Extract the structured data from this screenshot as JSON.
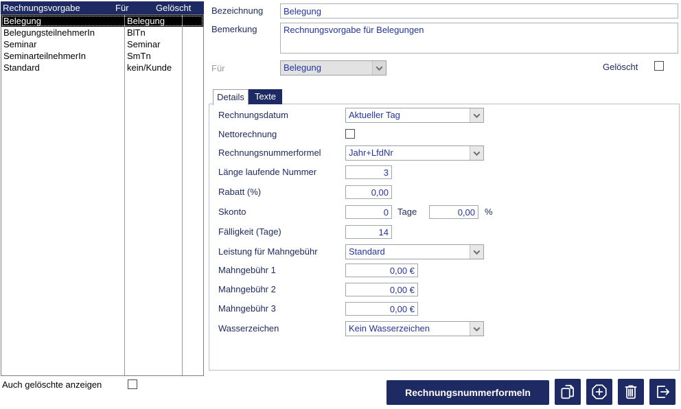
{
  "colors": {
    "accent_navy": "#1e2a63",
    "field_text": "#2333a0",
    "selected_row_bg": "#000000"
  },
  "list": {
    "headers": {
      "col1": "Rechnungsvorgabe",
      "col2": "Für",
      "col3": "Gelöscht"
    },
    "rows": [
      {
        "name": "Belegung",
        "fuer": "Belegung",
        "selected": true
      },
      {
        "name": "BelegungsteilnehmerIn",
        "fuer": "BlTn",
        "selected": false
      },
      {
        "name": "Seminar",
        "fuer": "Seminar",
        "selected": false
      },
      {
        "name": "SeminarteilnehmerIn",
        "fuer": "SmTn",
        "selected": false
      },
      {
        "name": "Standard",
        "fuer": "kein/Kunde",
        "selected": false
      }
    ]
  },
  "detail": {
    "bezeichnung_label": "Bezeichnung",
    "bezeichnung_value": "Belegung",
    "bemerkung_label": "Bemerkung",
    "bemerkung_value": "Rechnungsvorgabe für Belegungen",
    "fuer_label": "Für",
    "fuer_value": "Belegung",
    "geloescht_label": "Gelöscht"
  },
  "tabs": {
    "details": "Details",
    "texte": "Texte"
  },
  "form": {
    "rechnungsdatum": {
      "label": "Rechnungsdatum",
      "value": "Aktueller Tag"
    },
    "nettorechnung": {
      "label": "Nettorechnung"
    },
    "rechnungsnummerformel": {
      "label": "Rechnungsnummerformel",
      "value": "Jahr+LfdNr"
    },
    "laenge_laufende_nummer": {
      "label": "Länge laufende Nummer",
      "value": "3"
    },
    "rabatt": {
      "label": "Rabatt (%)",
      "value": "0,00"
    },
    "skonto": {
      "label": "Skonto",
      "value1": "0",
      "unit1": "Tage",
      "value2": "0,00",
      "unit2": "%"
    },
    "faelligkeit": {
      "label": "Fälligkeit (Tage)",
      "value": "14"
    },
    "leistung_mahngebuehr": {
      "label": "Leistung für Mahngebühr",
      "value": "Standard"
    },
    "mahngebuehr1": {
      "label": "Mahngebühr 1",
      "value": "0,00 €"
    },
    "mahngebuehr2": {
      "label": "Mahngebühr 2",
      "value": "0,00 €"
    },
    "mahngebuehr3": {
      "label": "Mahngebühr 3",
      "value": "0,00 €"
    },
    "wasserzeichen": {
      "label": "Wasserzeichen",
      "value": "Kein Wasserzeichen"
    }
  },
  "footer": {
    "show_deleted_label": "Auch gelöschte anzeigen",
    "formulas_button": "Rechnungsnummerformeln",
    "icons": [
      "copy",
      "add",
      "delete",
      "exit"
    ]
  }
}
